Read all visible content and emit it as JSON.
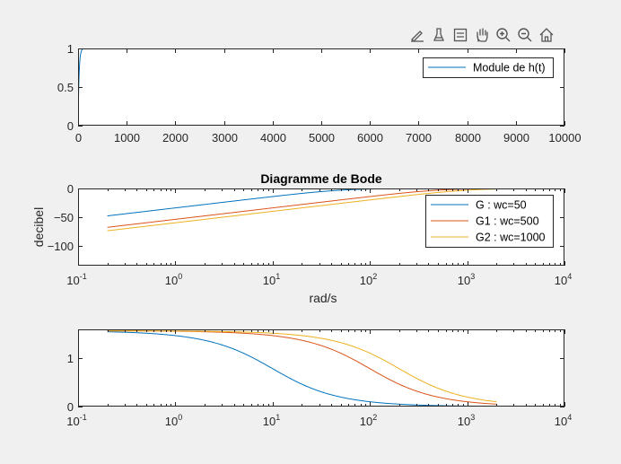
{
  "toolbar": {
    "icons": [
      "brush-icon",
      "data-tips-icon",
      "legend-icon",
      "pan-icon",
      "zoom-in-icon",
      "zoom-out-icon",
      "home-icon"
    ]
  },
  "colors": {
    "blue": "#0072BD",
    "orange": "#D95319",
    "yellow": "#EDB120"
  },
  "chart_data": [
    {
      "type": "line",
      "title": "",
      "xlabel": "",
      "ylabel": "",
      "xscale": "linear",
      "xlim": [
        0,
        10000
      ],
      "ylim": [
        0,
        1
      ],
      "xticks": [
        0,
        1000,
        2000,
        3000,
        4000,
        5000,
        6000,
        7000,
        8000,
        9000,
        10000
      ],
      "xtick_labels": [
        "0",
        "1000",
        "2000",
        "3000",
        "4000",
        "5000",
        "6000",
        "7000",
        "8000",
        "9000",
        "10000"
      ],
      "yticks": [
        0,
        0.5,
        1
      ],
      "ytick_labels": [
        "0",
        "0.5",
        "1"
      ],
      "legend": "top-right",
      "series": [
        {
          "name": "Module de h(t)",
          "color": "#0072BD",
          "model": "step",
          "tau": 20,
          "x_range": [
            0,
            10000
          ]
        }
      ]
    },
    {
      "type": "line",
      "title": "Diagramme de Bode",
      "xlabel": "rad/s",
      "ylabel": "decibel",
      "xscale": "log",
      "xlim": [
        0.1,
        10000
      ],
      "ylim": [
        -135,
        0
      ],
      "xticks": [
        0.1,
        1,
        10,
        100,
        1000,
        10000
      ],
      "xtick_labels": [
        [
          "10",
          "-1"
        ],
        [
          "10",
          "0"
        ],
        [
          "10",
          "1"
        ],
        [
          "10",
          "2"
        ],
        [
          "10",
          "3"
        ],
        [
          "10",
          "4"
        ]
      ],
      "yticks": [
        0,
        -50,
        -100
      ],
      "ytick_labels": [
        "0",
        "−50",
        "−100"
      ],
      "legend": "top-right",
      "series": [
        {
          "name": "G : wc=50",
          "color": "#0072BD",
          "model": "magnitude",
          "wc": 50,
          "x_range": [
            0.2,
            2000
          ]
        },
        {
          "name": "G1 : wc=500",
          "color": "#D95319",
          "model": "magnitude",
          "wc": 500,
          "x_range": [
            0.2,
            2000
          ]
        },
        {
          "name": "G2 : wc=1000",
          "color": "#EDB120",
          "model": "magnitude",
          "wc": 1000,
          "x_range": [
            0.2,
            2000
          ]
        }
      ]
    },
    {
      "type": "line",
      "title": "",
      "xlabel": "",
      "ylabel": "",
      "xscale": "log",
      "xlim": [
        0.1,
        10000
      ],
      "ylim": [
        0,
        1.6
      ],
      "xticks": [
        0.1,
        1,
        10,
        100,
        1000,
        10000
      ],
      "xtick_labels": [
        [
          "10",
          "-1"
        ],
        [
          "10",
          "0"
        ],
        [
          "10",
          "1"
        ],
        [
          "10",
          "2"
        ],
        [
          "10",
          "3"
        ],
        [
          "10",
          "4"
        ]
      ],
      "yticks": [
        0,
        1
      ],
      "ytick_labels": [
        "0",
        "1"
      ],
      "legend": "none",
      "series": [
        {
          "name": "",
          "color": "#0072BD",
          "model": "phase",
          "wc": 10,
          "x_range": [
            0.2,
            2000
          ]
        },
        {
          "name": "",
          "color": "#D95319",
          "model": "phase",
          "wc": 100,
          "x_range": [
            0.2,
            2000
          ]
        },
        {
          "name": "",
          "color": "#EDB120",
          "model": "phase",
          "wc": 200,
          "x_range": [
            0.2,
            2000
          ]
        }
      ]
    }
  ]
}
